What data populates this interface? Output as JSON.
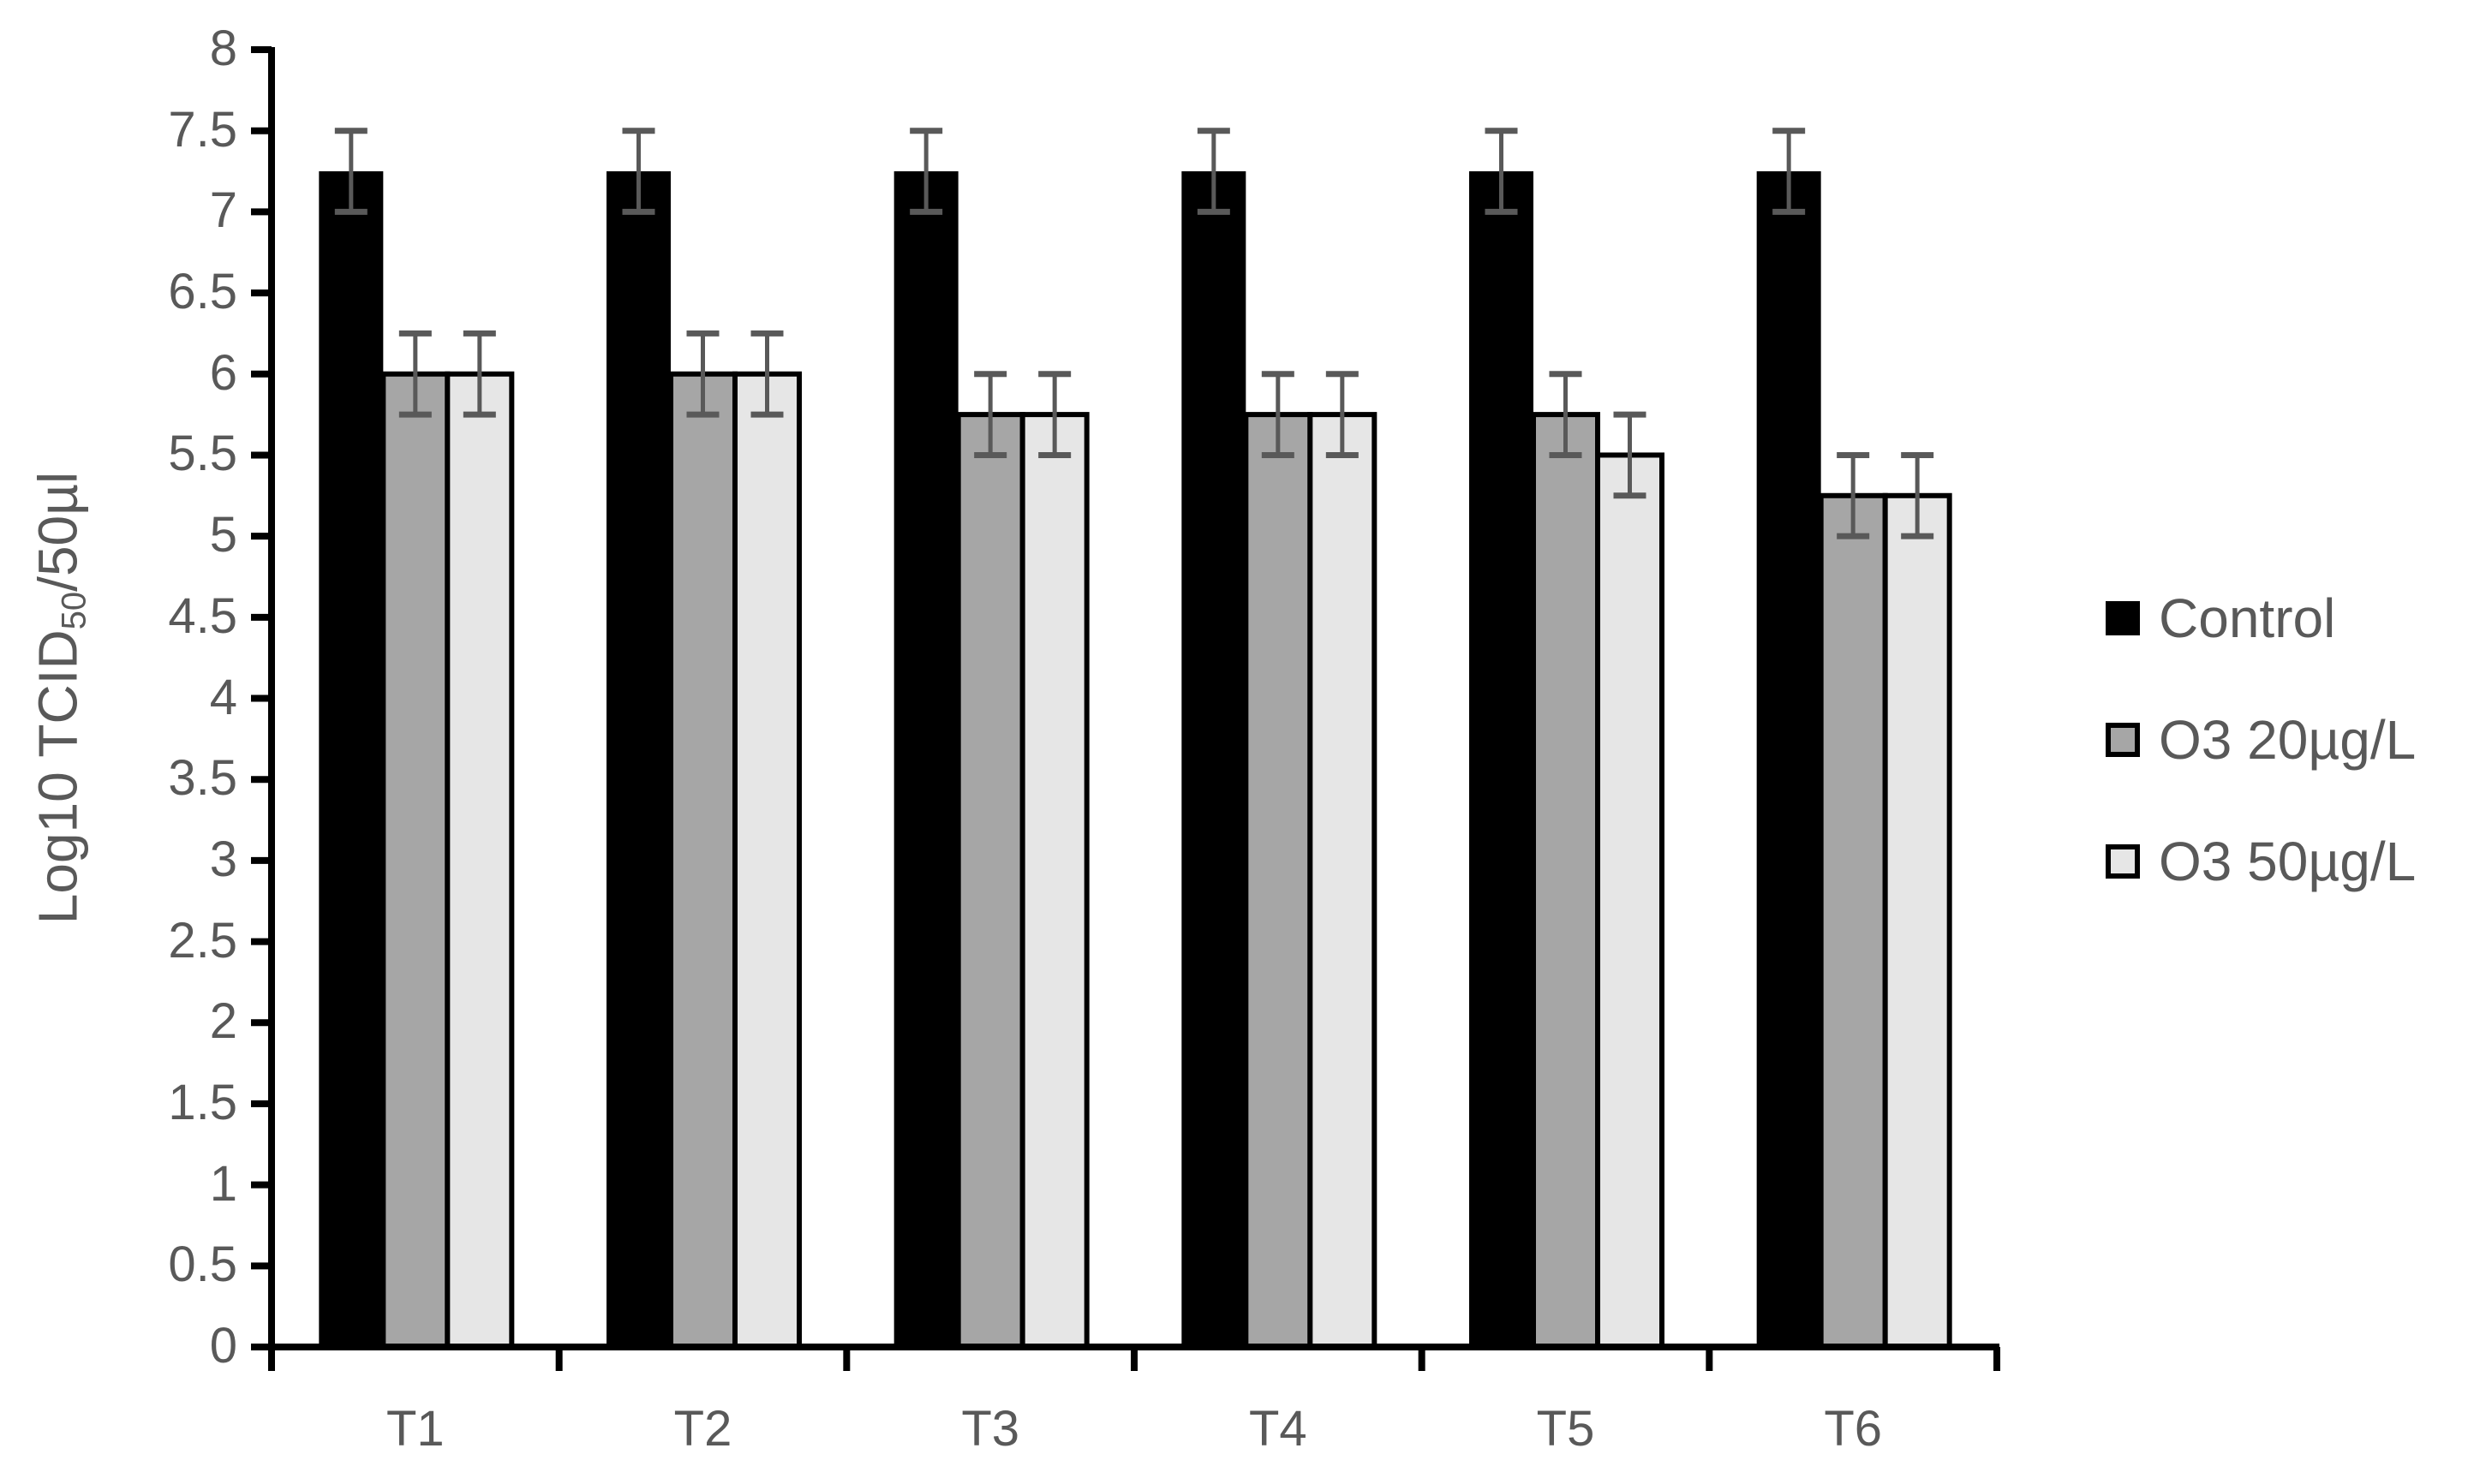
{
  "chart_data": {
    "type": "bar",
    "title": "",
    "xlabel": "",
    "ylabel": "Log10 TCID50/50µl",
    "ylabel_parts": {
      "main": "Log10 TCID",
      "sub": "50",
      "suffix": "/50µl"
    },
    "ylim": [
      0,
      8
    ],
    "ytick_step": 0.5,
    "yticks": [
      "0",
      "0.5",
      "1",
      "1.5",
      "2",
      "2.5",
      "3",
      "3.5",
      "4",
      "4.5",
      "5",
      "5.5",
      "6",
      "6.5",
      "7",
      "7.5",
      "8"
    ],
    "grid": false,
    "legend_position": "right",
    "categories": [
      "T1",
      "T2",
      "T3",
      "T4",
      "T5",
      "T6"
    ],
    "series": [
      {
        "name": "Control",
        "color": "#000000",
        "values": [
          7.25,
          7.25,
          7.25,
          7.25,
          7.25,
          7.25
        ],
        "error": [
          0.25,
          0.25,
          0.25,
          0.25,
          0.25,
          0.25
        ]
      },
      {
        "name": "O3 20µg/L",
        "color": "#a6a6a6",
        "values": [
          6.0,
          6.0,
          5.75,
          5.75,
          5.75,
          5.25
        ],
        "error": [
          0.25,
          0.25,
          0.25,
          0.25,
          0.25,
          0.25
        ]
      },
      {
        "name": "O3 50µg/L",
        "color": "#e6e6e6",
        "values": [
          6.0,
          6.0,
          5.75,
          5.75,
          5.5,
          5.25
        ],
        "error": [
          0.25,
          0.25,
          0.25,
          0.25,
          0.25,
          0.25
        ]
      }
    ],
    "error_bar_color": "#595959"
  }
}
